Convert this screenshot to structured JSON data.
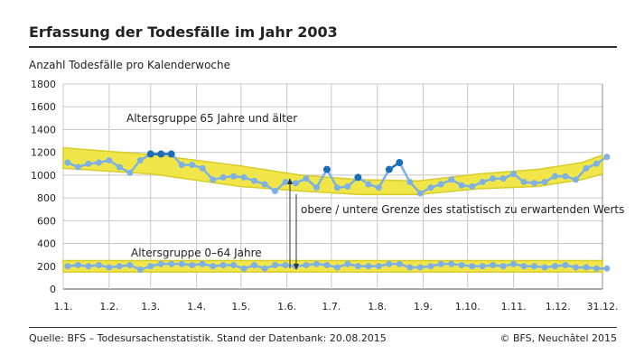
{
  "title": "Erfassung der Todesfälle im Jahr 2003",
  "footer": {
    "source": "Quelle: BFS – Todesursachenstatistik. Stand der Datenbank: 20.08.2015",
    "copyright": "© BFS, Neuchâtel 2015"
  },
  "colors": {
    "band": "#f0e64a",
    "bandEdge": "#d8cc2a",
    "line": "#7fb0e3",
    "highlight": "#1a6fb8",
    "grid": "#c8c8c8"
  },
  "chart_data": {
    "type": "line",
    "title": "Erfassung der Todesfälle im Jahr 2003",
    "ylabel": "Anzahl Todesfälle pro Kalenderwoche",
    "ylim": [
      0,
      1800
    ],
    "yticks": [
      0,
      200,
      400,
      600,
      800,
      1000,
      1200,
      1400,
      1600,
      1800
    ],
    "xticks": [
      {
        "label": "1.1.",
        "day": 0
      },
      {
        "label": "1.2.",
        "day": 31
      },
      {
        "label": "1.3.",
        "day": 59
      },
      {
        "label": "1.4.",
        "day": 90
      },
      {
        "label": "1.5.",
        "day": 120
      },
      {
        "label": "1.6.",
        "day": 151
      },
      {
        "label": "1.7.",
        "day": 181
      },
      {
        "label": "1.8.",
        "day": 212
      },
      {
        "label": "1.9.",
        "day": 243
      },
      {
        "label": "1.10.",
        "day": 273
      },
      {
        "label": "1.11.",
        "day": 304
      },
      {
        "label": "1.12.",
        "day": 334
      },
      {
        "label": "31.12.",
        "day": 364
      }
    ],
    "annotations": {
      "old": "Altersgruppe 65 Jahre und älter",
      "young": "Altersgruppe 0–64 Jahre",
      "band": "obere / untere Grenze des statistisch zu erwartenden Werts"
    },
    "series": [
      {
        "name": "Altersgruppe 65 Jahre und älter",
        "values": [
          1110,
          1070,
          1100,
          1110,
          1130,
          1070,
          1020,
          1130,
          1185,
          1185,
          1185,
          1090,
          1090,
          1060,
          960,
          980,
          990,
          980,
          950,
          920,
          860,
          940,
          930,
          970,
          890,
          1050,
          890,
          900,
          980,
          920,
          890,
          1050,
          1110,
          940,
          840,
          890,
          920,
          960,
          910,
          900,
          940,
          970,
          970,
          1010,
          940,
          930,
          940,
          990,
          990,
          960,
          1060,
          1100,
          1160
        ],
        "band_upper": [
          [
            0,
            1240
          ],
          [
            60,
            1180
          ],
          [
            120,
            1080
          ],
          [
            160,
            1000
          ],
          [
            200,
            960
          ],
          [
            240,
            950
          ],
          [
            280,
            1010
          ],
          [
            320,
            1050
          ],
          [
            350,
            1110
          ],
          [
            364,
            1175
          ]
        ],
        "band_lower": [
          [
            0,
            1060
          ],
          [
            60,
            1010
          ],
          [
            120,
            900
          ],
          [
            160,
            860
          ],
          [
            200,
            830
          ],
          [
            240,
            830
          ],
          [
            280,
            880
          ],
          [
            320,
            900
          ],
          [
            350,
            960
          ],
          [
            364,
            1010
          ]
        ]
      },
      {
        "name": "Altersgruppe 0–64 Jahre",
        "values": [
          200,
          210,
          200,
          210,
          190,
          200,
          210,
          170,
          200,
          220,
          220,
          220,
          210,
          220,
          200,
          210,
          210,
          180,
          210,
          180,
          210,
          210,
          200,
          210,
          220,
          210,
          190,
          220,
          200,
          200,
          200,
          220,
          220,
          190,
          190,
          200,
          220,
          220,
          210,
          200,
          200,
          210,
          200,
          220,
          200,
          200,
          190,
          200,
          210,
          190,
          190,
          180,
          180
        ],
        "band_upper": [
          [
            0,
            250
          ],
          [
            364,
            250
          ]
        ],
        "band_lower": [
          [
            0,
            150
          ],
          [
            364,
            150
          ]
        ]
      }
    ]
  }
}
